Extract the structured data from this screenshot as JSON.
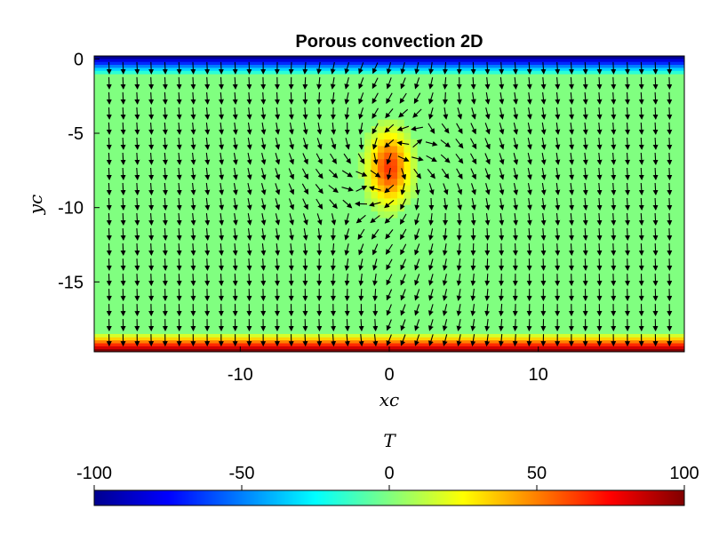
{
  "chart_data": {
    "type": "heatmap",
    "title": "Porous convection 2D",
    "xlabel": "xc",
    "ylabel": "yc",
    "xlim": [
      -19.8,
      19.8
    ],
    "ylim": [
      -19.7,
      0.2
    ],
    "xticks": [
      -10,
      0,
      10
    ],
    "xtick_labels": [
      "-10",
      "0",
      "10"
    ],
    "yticks": [
      0,
      -5,
      -10,
      -15
    ],
    "ytick_labels": [
      "0",
      "-5",
      "-10",
      "-15"
    ],
    "field": {
      "name": "T",
      "background": 0,
      "top_boundary": -100,
      "bottom_boundary": 100,
      "boundary_layer_thickness": 1.2,
      "anomaly": {
        "center": [
          0,
          -7.3
        ],
        "radii": [
          1.5,
          2.6
        ],
        "peak": 65
      }
    },
    "quiver": {
      "description": "Darcy flow velocity arrows: upwelling above the hot anomaly at x=0, two counter-rotating convection cells with downwelling at the sides",
      "nx": 41,
      "ny": 19,
      "x_range": [
        -18.8,
        18.8
      ],
      "y_range": [
        -18.9,
        -0.6
      ],
      "arrow_color": "#000000"
    },
    "colorbar": {
      "label": "T",
      "min": -100,
      "max": 100,
      "ticks": [
        -100,
        -50,
        0,
        50,
        100
      ],
      "tick_labels": [
        "-100",
        "-50",
        "0",
        "50",
        "100"
      ],
      "colormap": "jet"
    }
  }
}
